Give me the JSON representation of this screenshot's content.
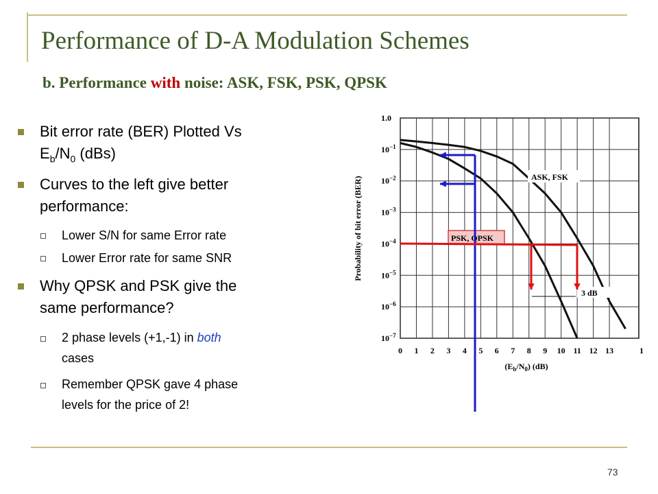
{
  "title": "Performance of D-A Modulation Schemes",
  "subtitle": {
    "parts": [
      "b. Performance ",
      "with",
      " noise: ASK, FSK, PSK, QPSK"
    ]
  },
  "bullets": [
    {
      "parts": [
        "Bit error rate (BER) Plotted Vs",
        "E",
        "b",
        "/N",
        "0",
        " (dBs)"
      ],
      "subs": []
    },
    {
      "parts": [
        "Curves to the left give better",
        "performance:"
      ],
      "subs": [
        {
          "parts": [
            "Lower S/N for same Error rate"
          ]
        },
        {
          "parts": [
            "Lower Error rate for same SNR"
          ]
        }
      ]
    },
    {
      "parts": [
        "Why QPSK and PSK give the",
        "same performance?"
      ],
      "subs": [
        {
          "parts": [
            "2 phase levels (+1,-1) in ",
            "both",
            "cases"
          ]
        },
        {
          "parts": [
            "Remember QPSK gave 4 phase",
            "levels for the price of 2!"
          ]
        }
      ]
    }
  ],
  "figure": {
    "type": "line",
    "y_label": "Probability of bit error (BER)",
    "x_label": {
      "parts": [
        "(E",
        "b",
        "/N",
        "0",
        ") (dB)"
      ]
    },
    "xlim": [
      0,
      15
    ],
    "ylim": [
      1e-07,
      1
    ],
    "log_y": true,
    "grid": true,
    "xticks": [
      0,
      1,
      2,
      3,
      4,
      5,
      6,
      7,
      8,
      9,
      10,
      11,
      12,
      13,
      {
        "value": 15,
        "label": "1"
      }
    ],
    "yticks": [
      {
        "value": 1,
        "label": "1.0"
      },
      {
        "value": 0.1,
        "label": "10",
        "exp": "−1"
      },
      {
        "value": 0.01,
        "label": "10",
        "exp": "−2"
      },
      {
        "value": 0.001,
        "label": "10",
        "exp": "−3"
      },
      {
        "value": 0.0001,
        "label": "10",
        "exp": "−4"
      },
      {
        "value": 1e-05,
        "label": "10",
        "exp": "−5"
      },
      {
        "value": 1e-06,
        "label": "10",
        "exp": "−6"
      },
      {
        "value": 1e-07,
        "label": "10",
        "exp": "−7"
      }
    ],
    "x": [
      0,
      1,
      2,
      3,
      4,
      5,
      6,
      7,
      8,
      9,
      10,
      11,
      12,
      13,
      14
    ],
    "series": [
      {
        "name": "ASK, FSK",
        "color": "#111111",
        "values": [
          0.2,
          0.18,
          0.16,
          0.14,
          0.12,
          0.09,
          0.06,
          0.035,
          0.012,
          0.004,
          0.001,
          0.00015,
          2e-05,
          1.5e-06,
          2e-07
        ]
      },
      {
        "name": "PSK, QPSK",
        "color": "#111111",
        "values": [
          0.16,
          0.12,
          0.08,
          0.05,
          0.025,
          0.012,
          0.004,
          0.001,
          0.00015,
          2e-05,
          1.5e-06,
          1e-07,
          null,
          null,
          null
        ]
      }
    ],
    "annotation": "3 dB"
  },
  "page_number": "73"
}
